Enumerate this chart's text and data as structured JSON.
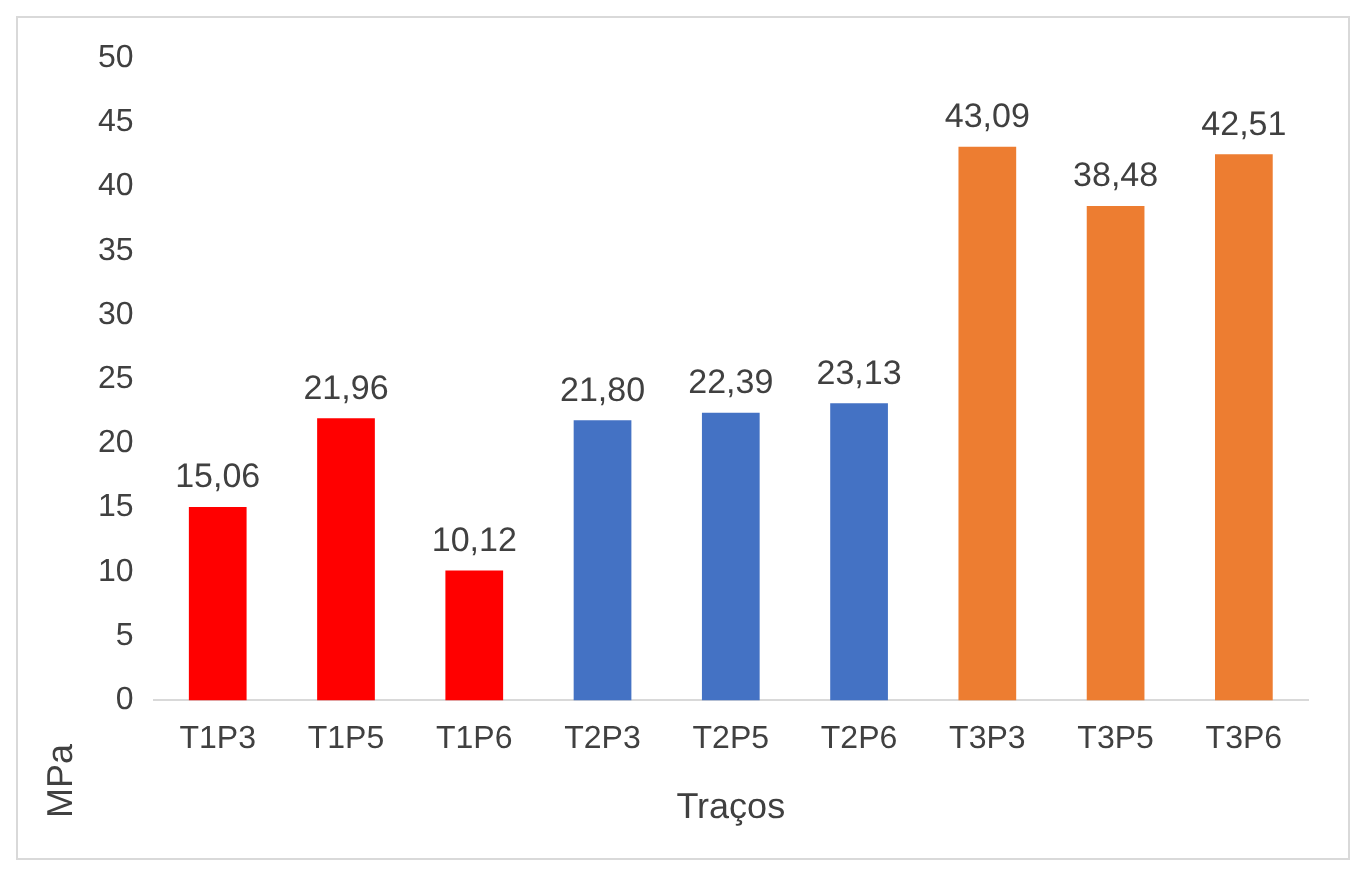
{
  "chart_data": {
    "type": "bar",
    "xlabel": "Traços",
    "ylabel": "MPa",
    "categories": [
      "T1P3",
      "T1P5",
      "T1P6",
      "T2P3",
      "T2P5",
      "T2P6",
      "T3P3",
      "T3P5",
      "T3P6"
    ],
    "values": [
      15.06,
      21.96,
      10.12,
      21.8,
      22.39,
      23.13,
      43.09,
      38.48,
      42.51
    ],
    "colors": [
      "#ff0000",
      "#ff0000",
      "#ff0000",
      "#4472c4",
      "#4472c4",
      "#4472c4",
      "#ed7d31",
      "#ed7d31",
      "#ed7d31"
    ],
    "value_labels": [
      "15,06",
      "21,96",
      "10,12",
      "21,80",
      "22,39",
      "23,13",
      "43,09",
      "38,48",
      "42,51"
    ],
    "ylim": [
      0,
      50
    ],
    "yticks": [
      0,
      5,
      10,
      15,
      20,
      25,
      30,
      35,
      40,
      45,
      50
    ],
    "grid": false,
    "legend": false
  }
}
